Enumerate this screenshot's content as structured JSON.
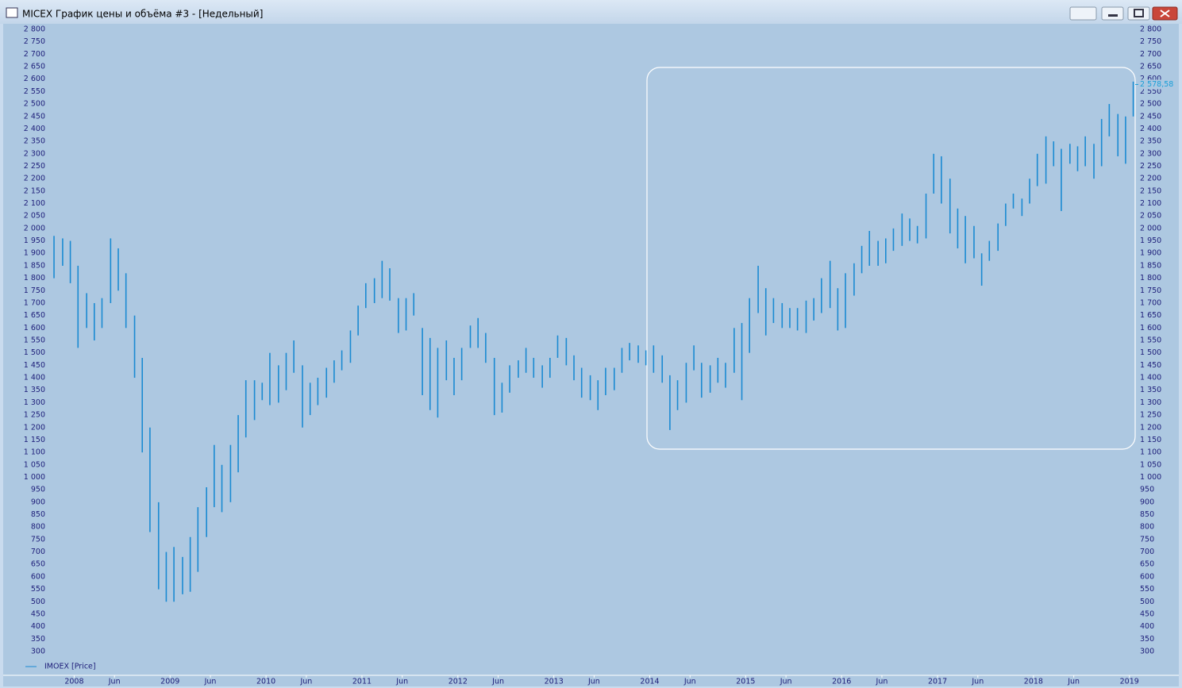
{
  "window": {
    "title": "MICEX График цены и объёма #3 - [Недельный]"
  },
  "chart_data": {
    "type": "range",
    "series": [
      {
        "name": "IMOEX [Price]",
        "color": "#1a8ad2",
        "x": [
          2007.79,
          2007.88,
          2007.96,
          2008.04,
          2008.13,
          2008.21,
          2008.29,
          2008.38,
          2008.46,
          2008.54,
          2008.63,
          2008.71,
          2008.79,
          2008.88,
          2008.96,
          2009.04,
          2009.13,
          2009.21,
          2009.29,
          2009.38,
          2009.46,
          2009.54,
          2009.63,
          2009.71,
          2009.79,
          2009.88,
          2009.96,
          2010.04,
          2010.13,
          2010.21,
          2010.29,
          2010.38,
          2010.46,
          2010.54,
          2010.63,
          2010.71,
          2010.79,
          2010.88,
          2010.96,
          2011.04,
          2011.13,
          2011.21,
          2011.29,
          2011.38,
          2011.46,
          2011.54,
          2011.63,
          2011.71,
          2011.79,
          2011.88,
          2011.96,
          2012.04,
          2012.13,
          2012.21,
          2012.29,
          2012.38,
          2012.46,
          2012.54,
          2012.63,
          2012.71,
          2012.79,
          2012.88,
          2012.96,
          2013.04,
          2013.13,
          2013.21,
          2013.29,
          2013.38,
          2013.46,
          2013.54,
          2013.63,
          2013.71,
          2013.79,
          2013.88,
          2013.96,
          2014.04,
          2014.13,
          2014.21,
          2014.29,
          2014.38,
          2014.46,
          2014.54,
          2014.63,
          2014.71,
          2014.79,
          2014.88,
          2014.96,
          2015.04,
          2015.13,
          2015.21,
          2015.29,
          2015.38,
          2015.46,
          2015.54,
          2015.63,
          2015.71,
          2015.79,
          2015.88,
          2015.96,
          2016.04,
          2016.13,
          2016.21,
          2016.29,
          2016.38,
          2016.46,
          2016.54,
          2016.63,
          2016.71,
          2016.79,
          2016.88,
          2016.96,
          2017.04,
          2017.13,
          2017.21,
          2017.29,
          2017.38,
          2017.46,
          2017.54,
          2017.63,
          2017.71,
          2017.79,
          2017.88,
          2017.96,
          2018.04,
          2018.13,
          2018.21,
          2018.29,
          2018.38,
          2018.46,
          2018.54,
          2018.63,
          2018.71,
          2018.79,
          2018.88,
          2018.96,
          2019.04
        ],
        "lows": [
          1800,
          1850,
          1780,
          1520,
          1600,
          1550,
          1600,
          1700,
          1750,
          1600,
          1400,
          1100,
          780,
          550,
          500,
          500,
          530,
          540,
          620,
          760,
          880,
          860,
          900,
          1020,
          1160,
          1230,
          1310,
          1290,
          1300,
          1350,
          1420,
          1200,
          1250,
          1290,
          1320,
          1380,
          1430,
          1460,
          1570,
          1680,
          1700,
          1720,
          1710,
          1580,
          1590,
          1650,
          1330,
          1270,
          1240,
          1390,
          1330,
          1390,
          1520,
          1520,
          1460,
          1250,
          1260,
          1340,
          1400,
          1420,
          1400,
          1360,
          1400,
          1480,
          1450,
          1390,
          1320,
          1310,
          1270,
          1330,
          1350,
          1420,
          1470,
          1460,
          1450,
          1420,
          1380,
          1190,
          1270,
          1300,
          1430,
          1320,
          1340,
          1380,
          1360,
          1420,
          1310,
          1500,
          1660,
          1570,
          1620,
          1600,
          1600,
          1590,
          1580,
          1630,
          1660,
          1680,
          1590,
          1600,
          1730,
          1820,
          1850,
          1850,
          1860,
          1910,
          1930,
          1950,
          1940,
          1960,
          2140,
          2100,
          1980,
          1920,
          1860,
          1880,
          1770,
          1870,
          1910,
          2010,
          2080,
          2050,
          2100,
          2170,
          2180,
          2250,
          2070,
          2260,
          2230,
          2250,
          2200,
          2250,
          2370,
          2290,
          2260,
          2450
        ],
        "highs": [
          1970,
          1960,
          1950,
          1850,
          1740,
          1700,
          1720,
          1960,
          1920,
          1820,
          1650,
          1480,
          1200,
          900,
          700,
          720,
          680,
          760,
          880,
          960,
          1130,
          1050,
          1130,
          1250,
          1390,
          1390,
          1380,
          1500,
          1450,
          1500,
          1550,
          1450,
          1380,
          1400,
          1440,
          1470,
          1510,
          1590,
          1690,
          1780,
          1800,
          1870,
          1840,
          1720,
          1720,
          1740,
          1600,
          1560,
          1520,
          1550,
          1480,
          1520,
          1610,
          1640,
          1580,
          1480,
          1380,
          1450,
          1470,
          1520,
          1480,
          1450,
          1480,
          1570,
          1560,
          1490,
          1440,
          1410,
          1390,
          1440,
          1440,
          1520,
          1540,
          1530,
          1510,
          1530,
          1490,
          1410,
          1390,
          1460,
          1530,
          1460,
          1450,
          1480,
          1460,
          1600,
          1620,
          1720,
          1850,
          1760,
          1720,
          1700,
          1680,
          1680,
          1710,
          1720,
          1800,
          1870,
          1760,
          1820,
          1860,
          1930,
          1990,
          1950,
          1960,
          2000,
          2060,
          2040,
          2010,
          2140,
          2300,
          2290,
          2200,
          2080,
          2050,
          2010,
          1900,
          1950,
          2020,
          2100,
          2140,
          2120,
          2200,
          2300,
          2370,
          2350,
          2320,
          2340,
          2330,
          2370,
          2340,
          2440,
          2500,
          2460,
          2450,
          2590
        ]
      }
    ],
    "last_value": {
      "value": 2578.58,
      "label": "2 578,58"
    },
    "xlim": [
      2007.74,
      2019.06
    ],
    "xticks": [
      2008,
      {
        "value": 2008.42,
        "label": "Jun"
      },
      2009,
      {
        "value": 2009.42,
        "label": "Jun"
      },
      2010,
      {
        "value": 2010.42,
        "label": "Jun"
      },
      2011,
      {
        "value": 2011.42,
        "label": "Jun"
      },
      2012,
      {
        "value": 2012.42,
        "label": "Jun"
      },
      2013,
      {
        "value": 2013.42,
        "label": "Jun"
      },
      2014,
      {
        "value": 2014.42,
        "label": "Jun"
      },
      2015,
      {
        "value": 2015.42,
        "label": "Jun"
      },
      2016,
      {
        "value": 2016.42,
        "label": "Jun"
      },
      2017,
      {
        "value": 2017.42,
        "label": "Jun"
      },
      2018,
      {
        "value": 2018.42,
        "label": "Jun"
      },
      2019
    ],
    "ylim": [
      300,
      2800
    ],
    "yticks": [
      300,
      350,
      400,
      450,
      500,
      550,
      600,
      650,
      700,
      750,
      800,
      850,
      900,
      950,
      {
        "value": 1000,
        "label": "1 000"
      },
      {
        "value": 1050,
        "label": "1 050"
      },
      {
        "value": 1100,
        "label": "1 100"
      },
      {
        "value": 1150,
        "label": "1 150"
      },
      {
        "value": 1200,
        "label": "1 200"
      },
      {
        "value": 1250,
        "label": "1 250"
      },
      {
        "value": 1300,
        "label": "1 300"
      },
      {
        "value": 1350,
        "label": "1 350"
      },
      {
        "value": 1400,
        "label": "1 400"
      },
      {
        "value": 1450,
        "label": "1 450"
      },
      {
        "value": 1500,
        "label": "1 500"
      },
      {
        "value": 1550,
        "label": "1 550"
      },
      {
        "value": 1600,
        "label": "1 600"
      },
      {
        "value": 1650,
        "label": "1 650"
      },
      {
        "value": 1700,
        "label": "1 700"
      },
      {
        "value": 1750,
        "label": "1 750"
      },
      {
        "value": 1800,
        "label": "1 800"
      },
      {
        "value": 1850,
        "label": "1 850"
      },
      {
        "value": 1900,
        "label": "1 900"
      },
      {
        "value": 1950,
        "label": "1 950"
      },
      {
        "value": 2000,
        "label": "2 000"
      },
      {
        "value": 2050,
        "label": "2 050"
      },
      {
        "value": 2100,
        "label": "2 100"
      },
      {
        "value": 2150,
        "label": "2 150"
      },
      {
        "value": 2200,
        "label": "2 200"
      },
      {
        "value": 2250,
        "label": "2 250"
      },
      {
        "value": 2300,
        "label": "2 300"
      },
      {
        "value": 2350,
        "label": "2 350"
      },
      {
        "value": 2400,
        "label": "2 400"
      },
      {
        "value": 2450,
        "label": "2 450"
      },
      {
        "value": 2500,
        "label": "2 500"
      },
      {
        "value": 2550,
        "label": "2 550"
      },
      {
        "value": 2600,
        "label": "2 600"
      },
      {
        "value": 2650,
        "label": "2 650"
      },
      {
        "value": 2700,
        "label": "2 700"
      },
      {
        "value": 2750,
        "label": "2 750"
      },
      {
        "value": 2800,
        "label": "2 800"
      }
    ]
  }
}
